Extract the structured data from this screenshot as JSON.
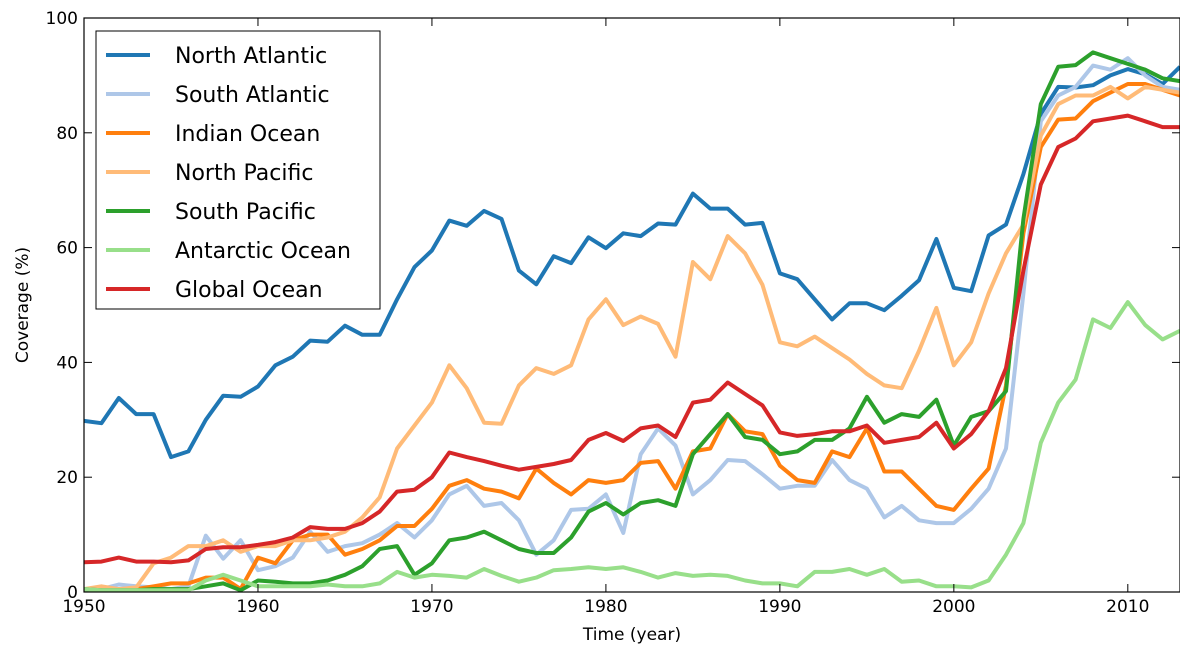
{
  "chart_data": {
    "type": "line",
    "xlabel": "Time (year)",
    "ylabel": "Coverage (%)",
    "xlim": [
      1950,
      2013
    ],
    "ylim": [
      0,
      100
    ],
    "xticks": [
      1950,
      1960,
      1970,
      1980,
      1990,
      2000,
      2010
    ],
    "yticks": [
      0,
      20,
      40,
      60,
      80,
      100
    ],
    "legend_position": "top-left",
    "grid": false,
    "x": [
      1950,
      1951,
      1952,
      1953,
      1954,
      1955,
      1956,
      1957,
      1958,
      1959,
      1960,
      1961,
      1962,
      1963,
      1964,
      1965,
      1966,
      1967,
      1968,
      1969,
      1970,
      1971,
      1972,
      1973,
      1974,
      1975,
      1976,
      1977,
      1978,
      1979,
      1980,
      1981,
      1982,
      1983,
      1984,
      1985,
      1986,
      1987,
      1988,
      1989,
      1990,
      1991,
      1992,
      1993,
      1994,
      1995,
      1996,
      1997,
      1998,
      1999,
      2000,
      2001,
      2002,
      2003,
      2004,
      2005,
      2006,
      2007,
      2008,
      2009,
      2010,
      2011,
      2012,
      2013
    ],
    "series": [
      {
        "name": "North Atlantic",
        "color": "#1f77b4",
        "values": [
          29.8,
          29.4,
          33.8,
          31.0,
          31.0,
          23.5,
          24.5,
          30.0,
          34.2,
          34.0,
          35.8,
          39.5,
          41.0,
          43.8,
          43.6,
          46.4,
          44.8,
          44.8,
          51.0,
          56.6,
          59.5,
          64.7,
          63.8,
          66.4,
          65.0,
          56.0,
          53.6,
          58.5,
          57.3,
          61.8,
          59.9,
          62.5,
          62.0,
          64.2,
          64.0,
          69.4,
          66.8,
          66.8,
          64.0,
          64.3,
          55.5,
          54.5,
          51.0,
          47.5,
          50.3,
          50.3,
          49.1,
          51.6,
          54.3,
          61.5,
          53.0,
          52.4,
          62.1,
          64.0,
          72.8,
          83.3,
          88.0,
          87.9,
          88.3,
          90.0,
          91.1,
          90.2,
          88.5,
          91.5
        ]
      },
      {
        "name": "South Atlantic",
        "color": "#aec7e8",
        "values": [
          0.5,
          0.5,
          1.3,
          1.0,
          0.8,
          0.5,
          1.0,
          9.8,
          5.8,
          9.0,
          3.8,
          4.5,
          6.0,
          10.5,
          7.0,
          8.0,
          8.5,
          10.0,
          12.0,
          9.5,
          12.5,
          17.0,
          18.5,
          15.0,
          15.5,
          12.5,
          6.5,
          9.0,
          14.3,
          14.5,
          17.0,
          10.3,
          24.0,
          28.5,
          25.5,
          17.0,
          19.5,
          23.0,
          22.8,
          20.5,
          18.0,
          18.5,
          18.5,
          23.0,
          19.5,
          18.0,
          13.0,
          15.0,
          12.5,
          12.0,
          12.0,
          14.5,
          18.0,
          25.0,
          52.0,
          82.0,
          86.5,
          88.0,
          91.7,
          91.0,
          93.0,
          90.0,
          88.0,
          87.5
        ]
      },
      {
        "name": "Indian Ocean",
        "color": "#ff7f0e",
        "values": [
          0.5,
          0.5,
          0.5,
          0.5,
          1.0,
          1.5,
          1.5,
          2.5,
          2.5,
          0.5,
          6.0,
          5.0,
          9.0,
          10.0,
          10.0,
          6.5,
          7.5,
          9.0,
          11.5,
          11.5,
          14.5,
          18.5,
          19.5,
          18.0,
          17.5,
          16.3,
          21.5,
          19.0,
          17.0,
          19.5,
          19.0,
          19.5,
          22.5,
          22.8,
          18.0,
          24.5,
          25.0,
          31.0,
          28.0,
          27.5,
          22.0,
          19.5,
          19.0,
          24.5,
          23.5,
          28.5,
          21.0,
          21.0,
          18.0,
          15.0,
          14.3,
          18.0,
          21.5,
          36.0,
          62.5,
          77.5,
          82.3,
          82.5,
          85.5,
          87.0,
          88.5,
          88.5,
          87.5,
          86.5
        ]
      },
      {
        "name": "North Pacific",
        "color": "#ffbb78",
        "values": [
          0.5,
          1.0,
          0.5,
          0.8,
          5.0,
          6.0,
          8.0,
          8.0,
          9.0,
          7.0,
          8.0,
          8.0,
          9.0,
          9.0,
          9.5,
          10.5,
          13.0,
          16.5,
          25.0,
          29.0,
          33.0,
          39.5,
          35.5,
          29.5,
          29.3,
          36.0,
          39.0,
          38.0,
          39.5,
          47.5,
          51.0,
          46.5,
          48.0,
          46.7,
          41.0,
          57.5,
          54.5,
          62.0,
          59.0,
          53.5,
          43.5,
          42.8,
          44.5,
          42.5,
          40.5,
          38.0,
          36.0,
          35.5,
          42.0,
          49.5,
          39.5,
          43.5,
          52.0,
          59.0,
          64.0,
          79.5,
          85.0,
          86.5,
          86.5,
          88.0,
          86.0,
          88.0,
          87.5,
          87.0
        ]
      },
      {
        "name": "South Pacific",
        "color": "#2ca02c",
        "values": [
          0.5,
          0.3,
          0.3,
          0.3,
          0.5,
          0.5,
          0.5,
          1.0,
          1.5,
          0.3,
          2.0,
          1.8,
          1.5,
          1.5,
          2.0,
          3.0,
          4.5,
          7.5,
          8.0,
          3.0,
          5.0,
          9.0,
          9.5,
          10.5,
          9.0,
          7.5,
          6.8,
          6.8,
          9.5,
          14.0,
          15.5,
          13.5,
          15.5,
          16.0,
          15.0,
          24.0,
          27.5,
          31.0,
          27.0,
          26.5,
          24.0,
          24.5,
          26.5,
          26.5,
          28.5,
          34.0,
          29.5,
          31.0,
          30.5,
          33.5,
          25.5,
          30.5,
          31.5,
          35.0,
          65.0,
          85.0,
          91.5,
          91.8,
          94.0,
          93.0,
          92.0,
          91.0,
          89.5,
          89.0
        ]
      },
      {
        "name": "Antarctic Ocean",
        "color": "#98df8a",
        "values": [
          0.5,
          0.3,
          0.3,
          0.3,
          0.3,
          0.3,
          0.3,
          2.0,
          3.0,
          2.0,
          1.0,
          1.0,
          1.0,
          1.0,
          1.3,
          1.0,
          1.0,
          1.5,
          3.5,
          2.5,
          3.0,
          2.8,
          2.5,
          4.0,
          2.8,
          1.8,
          2.5,
          3.8,
          4.0,
          4.3,
          4.0,
          4.3,
          3.5,
          2.5,
          3.3,
          2.8,
          3.0,
          2.8,
          2.0,
          1.5,
          1.5,
          1.0,
          3.5,
          3.5,
          4.0,
          3.0,
          4.0,
          1.8,
          2.0,
          1.0,
          1.0,
          0.8,
          2.0,
          6.5,
          12.0,
          26.0,
          33.0,
          37.0,
          47.5,
          46.0,
          50.5,
          46.5,
          44.0,
          45.5
        ]
      },
      {
        "name": "Global Ocean",
        "color": "#d62728",
        "values": [
          5.2,
          5.3,
          6.0,
          5.3,
          5.3,
          5.2,
          5.5,
          7.5,
          7.8,
          7.8,
          8.2,
          8.7,
          9.5,
          11.3,
          11.0,
          11.0,
          12.0,
          14.0,
          17.5,
          17.8,
          20.0,
          24.3,
          23.5,
          22.8,
          22.0,
          21.3,
          21.8,
          22.3,
          23.0,
          26.5,
          27.7,
          26.3,
          28.5,
          29.0,
          27.0,
          33.0,
          33.5,
          36.5,
          34.5,
          32.5,
          27.8,
          27.2,
          27.5,
          28.0,
          28.0,
          29.0,
          26.0,
          26.5,
          27.0,
          29.5,
          25.0,
          27.5,
          31.5,
          39.0,
          56.0,
          71.0,
          77.5,
          79.0,
          82.0,
          82.5,
          83.0,
          82.0,
          81.0,
          81.0
        ]
      }
    ]
  }
}
